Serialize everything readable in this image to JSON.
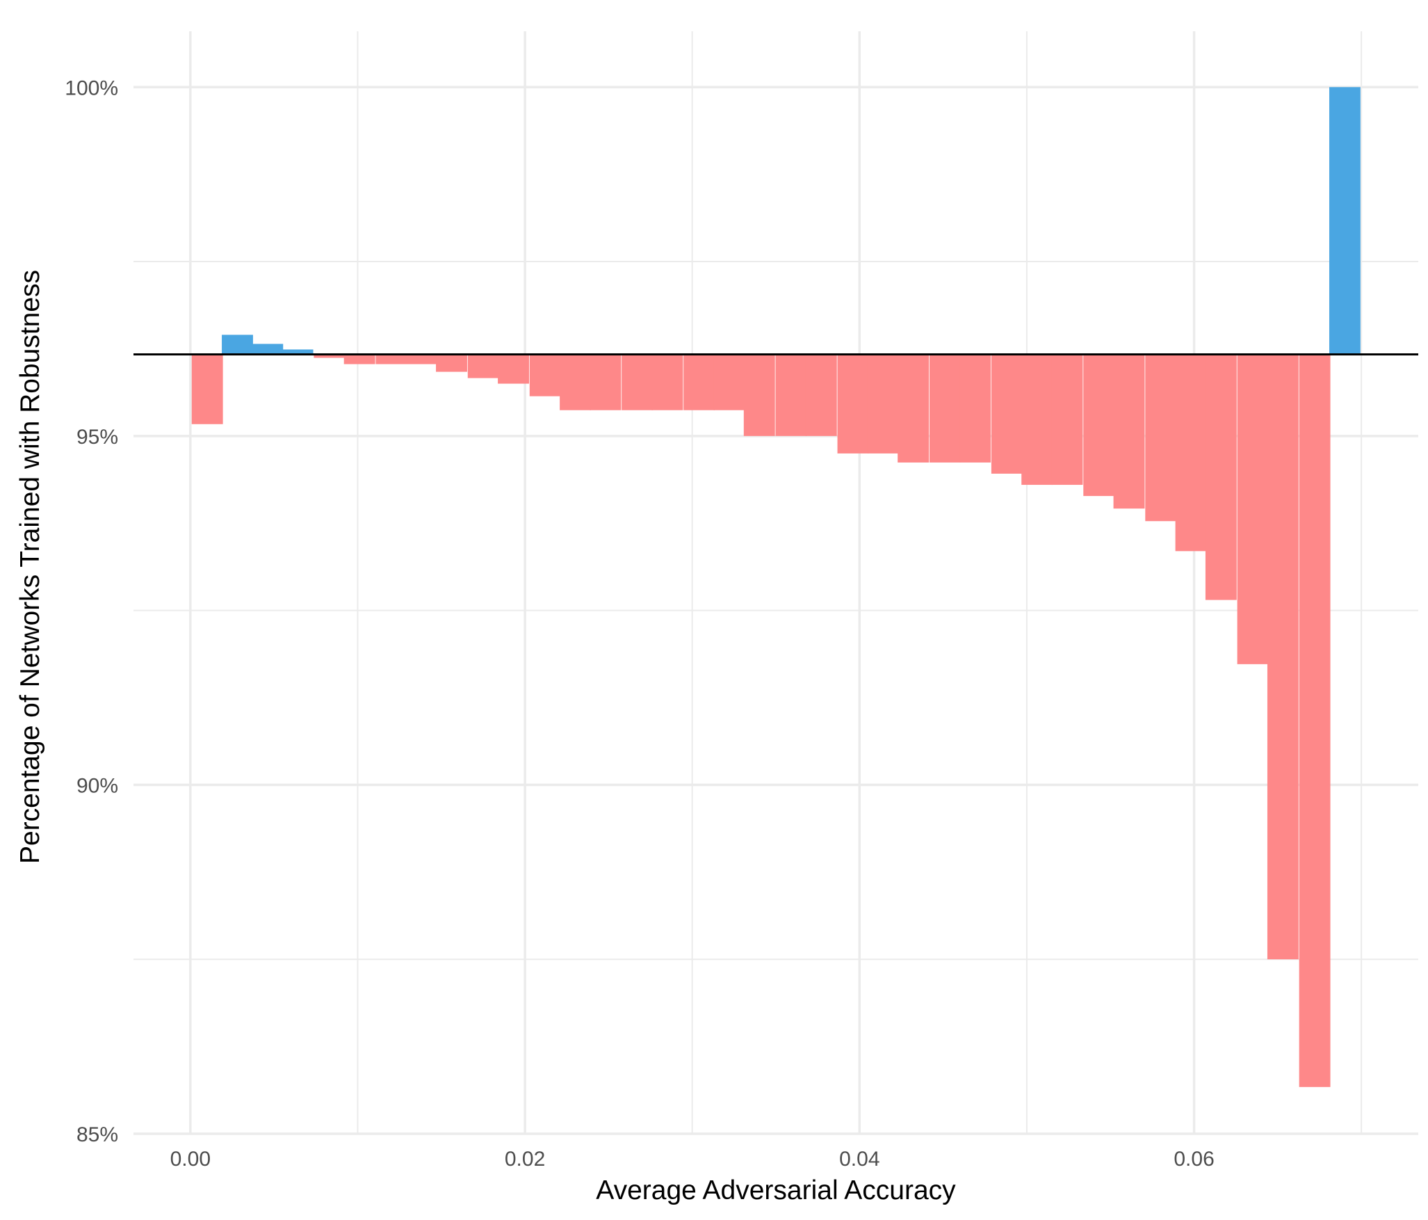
{
  "chart_data": {
    "type": "bar",
    "title": "",
    "xlabel": "Average Adversarial Accuracy",
    "ylabel": "Percentage of Networks Trained with Robustness",
    "xlim": [
      -0.0034,
      0.0734
    ],
    "ylim": [
      85,
      100.8
    ],
    "x_ticks": [
      0.0,
      0.02,
      0.04,
      0.06
    ],
    "x_tick_labels": [
      "0.00",
      "0.02",
      "0.04",
      "0.06"
    ],
    "y_ticks": [
      85,
      90,
      95,
      100
    ],
    "y_tick_labels": [
      "85%",
      "90%",
      "95%",
      "100%"
    ],
    "y_minor_ticks": [
      87.5,
      92.5,
      97.5
    ],
    "baseline": 96.17,
    "grid": true,
    "colors": {
      "above": "#4aa6e2",
      "below": "#fe8889",
      "baseline": "#000000",
      "grid": "#ebebeb",
      "text": "#4d4d4d"
    },
    "bin_width": 0.00184,
    "bars": [
      {
        "x": 0.001,
        "y": 95.17
      },
      {
        "x": 0.0028,
        "y": 96.45
      },
      {
        "x": 0.0046,
        "y": 96.32
      },
      {
        "x": 0.0064,
        "y": 96.24
      },
      {
        "x": 0.0083,
        "y": 96.12
      },
      {
        "x": 0.0101,
        "y": 96.03
      },
      {
        "x": 0.012,
        "y": 96.03
      },
      {
        "x": 0.0138,
        "y": 96.03
      },
      {
        "x": 0.0156,
        "y": 95.92
      },
      {
        "x": 0.0175,
        "y": 95.83
      },
      {
        "x": 0.0193,
        "y": 95.75
      },
      {
        "x": 0.0212,
        "y": 95.57
      },
      {
        "x": 0.023,
        "y": 95.37
      },
      {
        "x": 0.0248,
        "y": 95.37
      },
      {
        "x": 0.0267,
        "y": 95.37
      },
      {
        "x": 0.0285,
        "y": 95.37
      },
      {
        "x": 0.0304,
        "y": 95.37
      },
      {
        "x": 0.0322,
        "y": 95.37
      },
      {
        "x": 0.034,
        "y": 95.0
      },
      {
        "x": 0.0359,
        "y": 95.0
      },
      {
        "x": 0.0377,
        "y": 95.0
      },
      {
        "x": 0.0396,
        "y": 94.75
      },
      {
        "x": 0.0414,
        "y": 94.75
      },
      {
        "x": 0.0432,
        "y": 94.62
      },
      {
        "x": 0.0451,
        "y": 94.62
      },
      {
        "x": 0.0469,
        "y": 94.62
      },
      {
        "x": 0.0488,
        "y": 94.46
      },
      {
        "x": 0.0506,
        "y": 94.3
      },
      {
        "x": 0.0524,
        "y": 94.3
      },
      {
        "x": 0.0543,
        "y": 94.14
      },
      {
        "x": 0.0561,
        "y": 93.96
      },
      {
        "x": 0.058,
        "y": 93.78
      },
      {
        "x": 0.0598,
        "y": 93.35
      },
      {
        "x": 0.0616,
        "y": 92.65
      },
      {
        "x": 0.0635,
        "y": 91.73
      },
      {
        "x": 0.0653,
        "y": 87.5
      },
      {
        "x": 0.0672,
        "y": 85.67
      },
      {
        "x": 0.069,
        "y": 100.0
      }
    ]
  }
}
